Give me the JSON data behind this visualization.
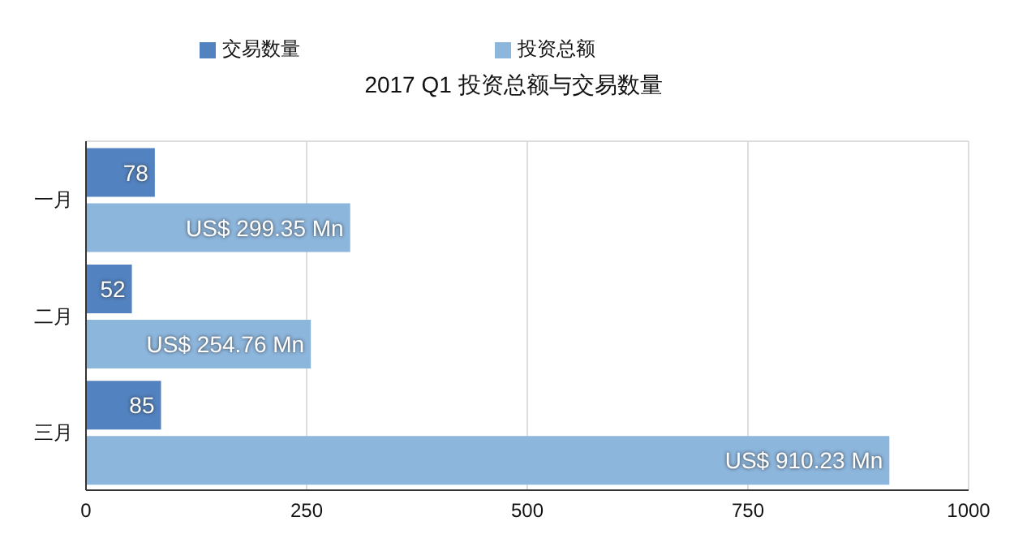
{
  "chart_data": {
    "type": "bar",
    "orientation": "horizontal",
    "title": "2017 Q1 投资总额与交易数量",
    "categories": [
      "一月",
      "二月",
      "三月"
    ],
    "series": [
      {
        "name": "交易数量",
        "color": "#5282bf",
        "values": [
          78,
          52,
          85
        ],
        "value_labels": [
          "78",
          "52",
          "85"
        ]
      },
      {
        "name": "投资总额",
        "color": "#8db6dd",
        "values": [
          299.35,
          254.76,
          910.23
        ],
        "value_labels": [
          "US$ 299.35 Mn",
          "US$ 254.76 Mn",
          "US$ 910.23 Mn"
        ]
      }
    ],
    "xlim": [
      0,
      1000
    ],
    "xticks": [
      0,
      250,
      500,
      750,
      1000
    ],
    "grid": "x",
    "legend": "top"
  }
}
